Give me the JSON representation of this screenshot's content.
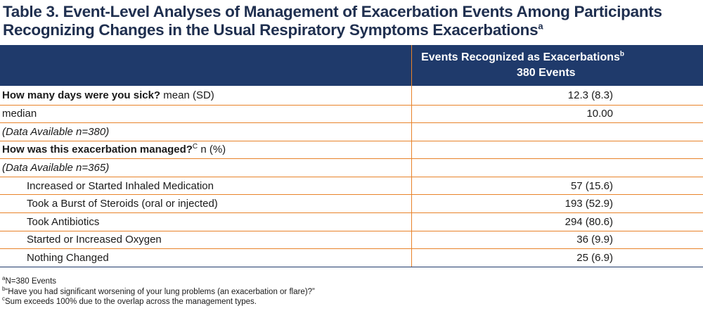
{
  "title": {
    "line1": "Table 3. Event-Level Analyses of Management of Exacerbation Events Among Participants",
    "line2": "Recognizing Changes in the Usual Respiratory Symptoms Exacerbations",
    "sup": "a"
  },
  "header": {
    "col2_line1": "Events Recognized as Exacerbations",
    "col2_sup": "b",
    "col2_line2": "380 Events"
  },
  "rows": {
    "days_sick_bold": "How many days were you sick?",
    "days_sick_rest": " mean (SD)",
    "days_sick_value": "12.3 (8.3)",
    "median_label": "median",
    "median_value": "10.00",
    "avail1": "(Data Available n=380)",
    "managed_bold": "How was this exacerbation managed?",
    "managed_sup": "C",
    "managed_rest": " n (%)",
    "avail2": "(Data Available n=365)",
    "items": [
      {
        "label": "Increased or Started Inhaled Medication",
        "value": "57 (15.6)"
      },
      {
        "label": "Took a Burst of Steroids (oral or injected)",
        "value": "193 (52.9)"
      },
      {
        "label": "Took Antibiotics",
        "value": "294 (80.6)"
      },
      {
        "label": "Started or Increased Oxygen",
        "value": "36 (9.9)"
      },
      {
        "label": "Nothing Changed",
        "value": "25 (6.9)"
      }
    ]
  },
  "footnotes": {
    "a_mark": "a",
    "a_text": "N=380 Events",
    "b_mark": "b",
    "b_text": "“Have you had significant worsening of your lung problems (an exacerbation or flare)?”",
    "c_mark": "c",
    "c_text": "Sum exceeds 100% due to the overlap across the management types."
  }
}
